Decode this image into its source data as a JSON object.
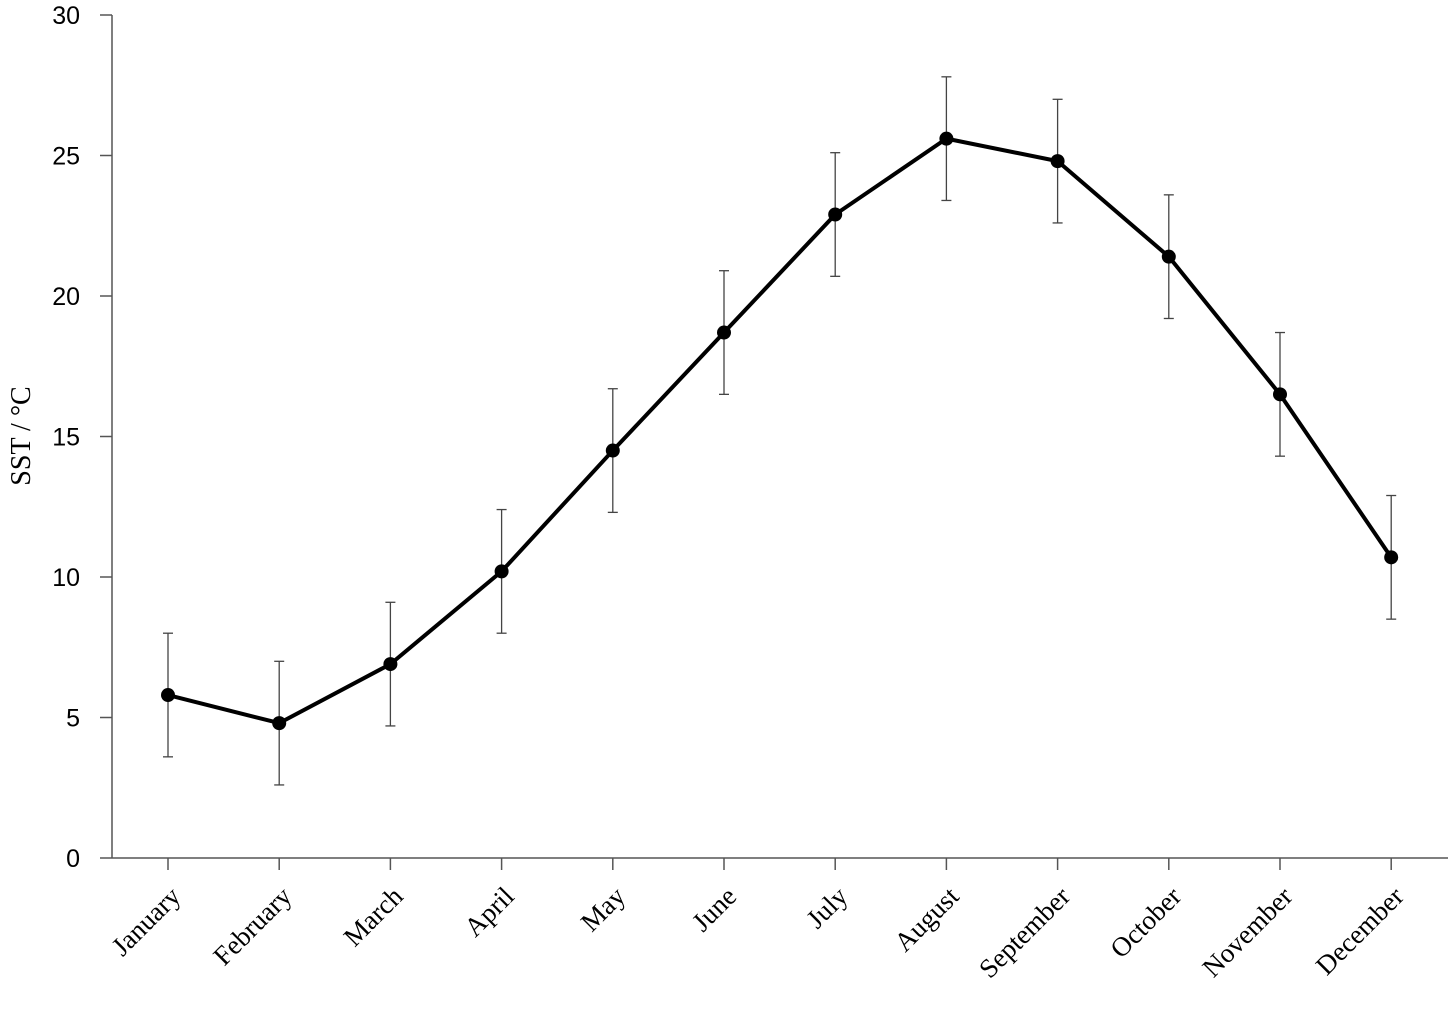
{
  "chart_data": {
    "type": "line",
    "title": "",
    "xlabel": "",
    "ylabel": "SST / °C",
    "ylim": [
      0,
      30
    ],
    "yticks": [
      "0",
      "5",
      "10",
      "15",
      "20",
      "25",
      "30"
    ],
    "grid": false,
    "categories": [
      "January",
      "February",
      "March",
      "April",
      "May",
      "June",
      "July",
      "August",
      "September",
      "October",
      "November",
      "December"
    ],
    "series": [
      {
        "values": [
          5.8,
          4.8,
          6.9,
          10.2,
          14.5,
          18.7,
          22.9,
          25.6,
          24.8,
          21.4,
          16.5,
          10.7
        ],
        "error": [
          2.2,
          2.2,
          2.2,
          2.2,
          2.2,
          2.2,
          2.2,
          2.2,
          2.2,
          2.2,
          2.2,
          2.2
        ],
        "color": "#000000"
      }
    ]
  }
}
